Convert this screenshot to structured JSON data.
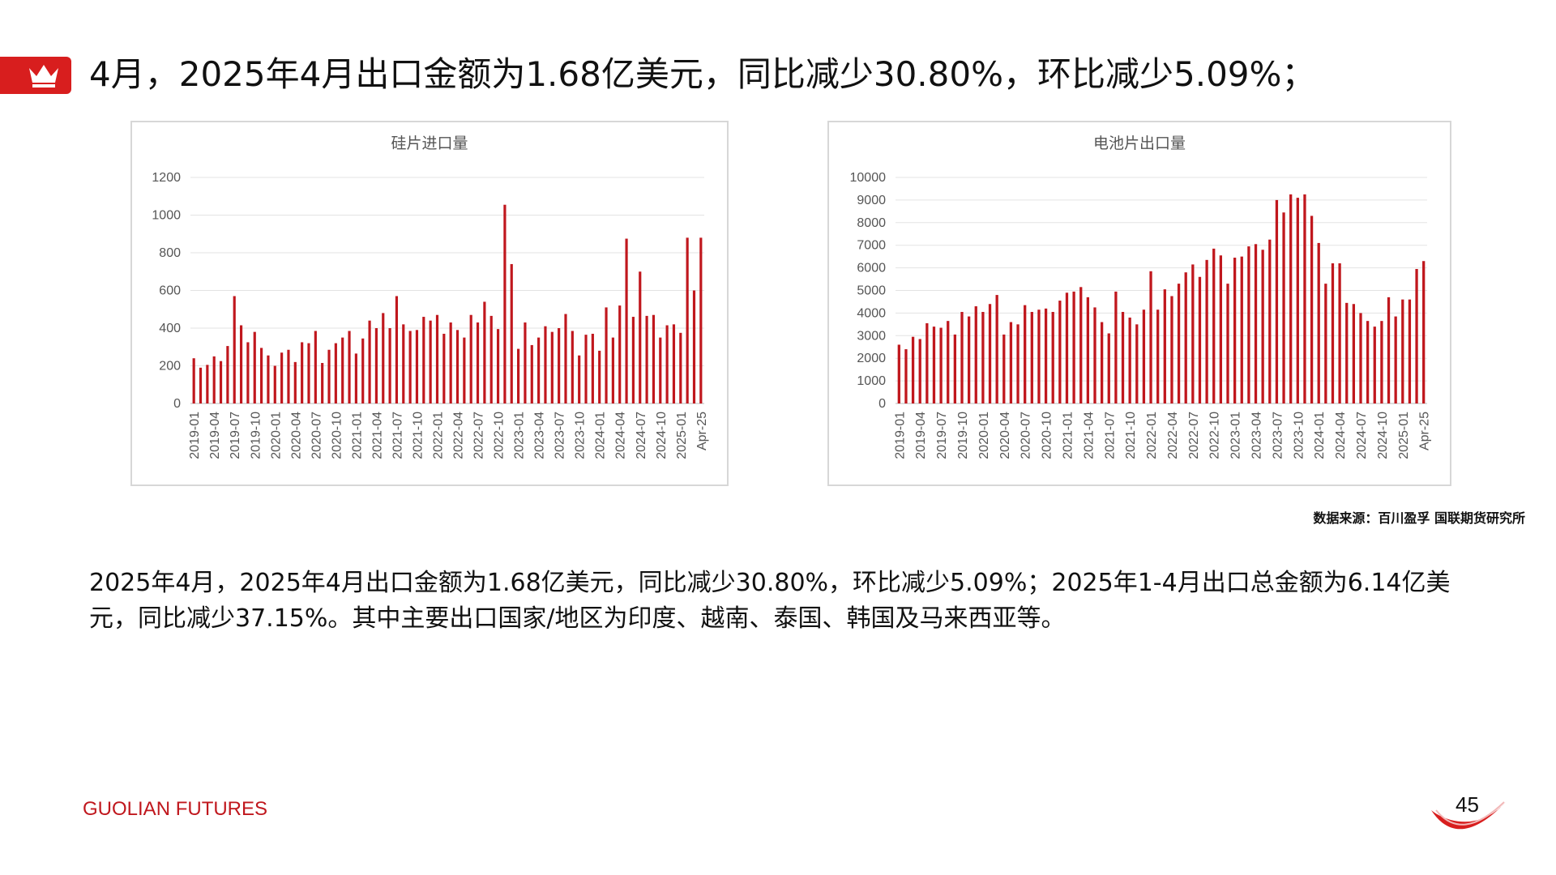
{
  "header": {
    "title": "4月，2025年4月出口金额为1.68亿美元，同比减少30.80%，环比减少5.09%；",
    "accent_color": "#d81e1e",
    "icon": "crown-icon"
  },
  "source": "数据来源：百川盈孚  国联期货研究所",
  "body": {
    "paragraph": "2025年4月，2025年4月出口金额为1.68亿美元，同比减少30.80%，环比减少5.09%；2025年1-4月出口总金额为6.14亿美元，同比减少37.15%。其中主要出口国家/地区为印度、越南、泰国、韩国及马来西亚等。"
  },
  "footer": {
    "brand_main": "GUOLIAN",
    "brand_sub": " FUTURES",
    "page_number": "45"
  },
  "chart_data": [
    {
      "type": "bar",
      "title": "硅片进口量",
      "color": "#c0171d",
      "ylim": [
        0,
        1200
      ],
      "yticks": [
        0,
        200,
        400,
        600,
        800,
        1000,
        1200
      ],
      "tick_labels": [
        "2019-01",
        "2019-04",
        "2019-07",
        "2019-10",
        "2020-01",
        "2020-04",
        "2020-07",
        "2020-10",
        "2021-01",
        "2021-04",
        "2021-07",
        "2021-10",
        "2022-01",
        "2022-04",
        "2022-07",
        "2022-10",
        "2023-01",
        "2023-04",
        "2023-07",
        "2023-10",
        "2024-01",
        "2024-04",
        "2024-07",
        "2024-10",
        "2025-01",
        "Apr-25"
      ],
      "values": [
        240,
        190,
        205,
        250,
        225,
        305,
        570,
        415,
        325,
        380,
        295,
        255,
        200,
        270,
        285,
        220,
        325,
        320,
        385,
        215,
        285,
        320,
        350,
        385,
        265,
        345,
        440,
        400,
        480,
        400,
        570,
        420,
        385,
        390,
        460,
        440,
        470,
        370,
        430,
        390,
        350,
        470,
        430,
        540,
        465,
        395,
        1055,
        740,
        290,
        430,
        310,
        350,
        410,
        380,
        400,
        475,
        385,
        255,
        365,
        370,
        280,
        510,
        350,
        520,
        875,
        460,
        700,
        465,
        470,
        350,
        415,
        420,
        375,
        880,
        600,
        880
      ]
    },
    {
      "type": "bar",
      "title": "电池片出口量",
      "color": "#c0171d",
      "ylim": [
        0,
        10000
      ],
      "yticks": [
        0,
        1000,
        2000,
        3000,
        4000,
        5000,
        6000,
        7000,
        8000,
        9000,
        10000
      ],
      "tick_labels": [
        "2019-01",
        "2019-04",
        "2019-07",
        "2019-10",
        "2020-01",
        "2020-04",
        "2020-07",
        "2020-10",
        "2021-01",
        "2021-04",
        "2021-07",
        "2021-10",
        "2022-01",
        "2022-04",
        "2022-07",
        "2022-10",
        "2023-01",
        "2023-04",
        "2023-07",
        "2023-10",
        "2024-01",
        "2024-04",
        "2024-07",
        "2024-10",
        "2025-01",
        "Apr-25"
      ],
      "values": [
        2600,
        2400,
        2950,
        2850,
        3550,
        3400,
        3350,
        3650,
        3050,
        4050,
        3850,
        4300,
        4050,
        4400,
        4800,
        3050,
        3600,
        3500,
        4350,
        4050,
        4150,
        4200,
        4050,
        4550,
        4900,
        4950,
        5150,
        4700,
        4250,
        3600,
        3100,
        4950,
        4050,
        3800,
        3500,
        4150,
        5850,
        4150,
        5050,
        4750,
        5300,
        5800,
        6150,
        5600,
        6350,
        6850,
        6550,
        5300,
        6450,
        6500,
        6950,
        7050,
        6800,
        7250,
        9000,
        8450,
        9250,
        9100,
        9250,
        8300,
        7100,
        5300,
        6200,
        6200,
        4450,
        4400,
        4000,
        3650,
        3400,
        3650,
        4700,
        3850,
        4600,
        4600,
        5950,
        6300
      ]
    }
  ]
}
